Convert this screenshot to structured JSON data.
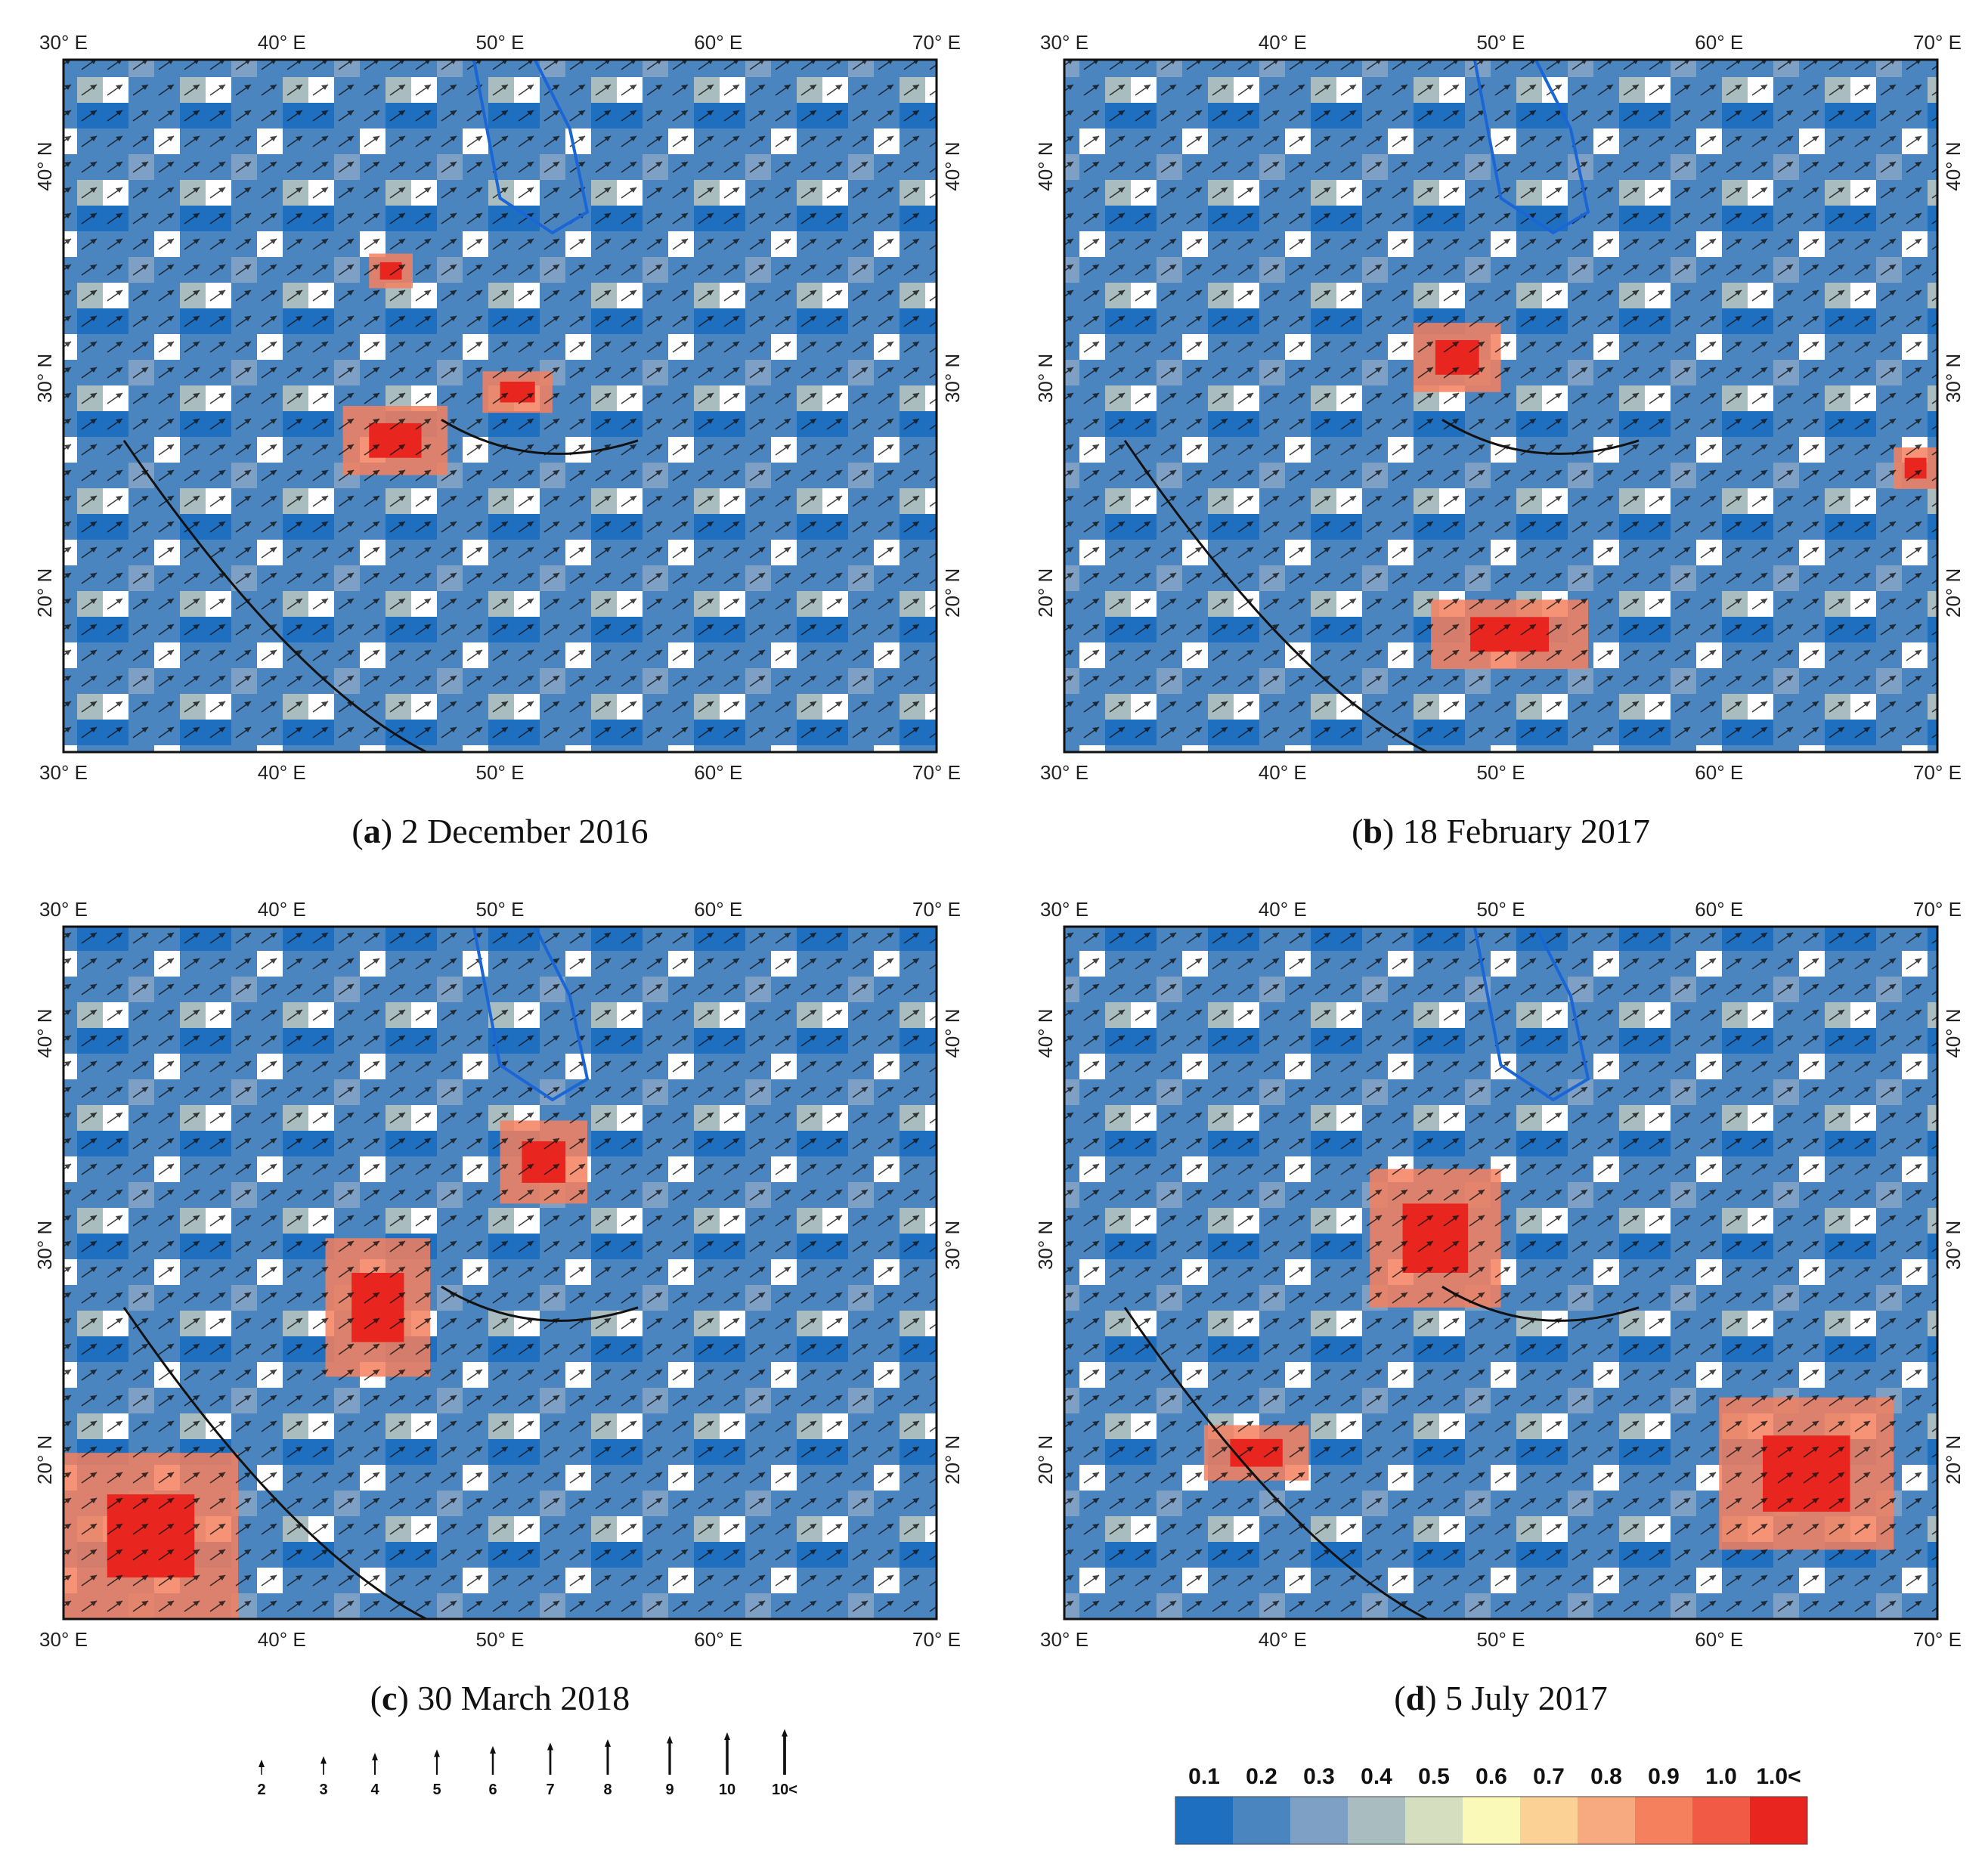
{
  "panels": [
    {
      "caption_parts": [
        "(",
        "a",
        ") 2 December 2016"
      ]
    },
    {
      "caption_parts": [
        "(",
        "b",
        ") 18 February 2017"
      ]
    },
    {
      "caption_parts": [
        "(",
        "c",
        ") 30 March 2018"
      ]
    },
    {
      "caption_parts": [
        "(",
        "d",
        ") 5 July 2017"
      ]
    }
  ],
  "lon_ticks": [
    "30° E",
    "40° E",
    "50° E",
    "60° E",
    "70° E"
  ],
  "lat_ticks": [
    "40° N",
    "30° N",
    "20° N"
  ],
  "wind_legend": {
    "labels": [
      "2",
      "3",
      "4",
      "5",
      "6",
      "7",
      "8",
      "9",
      "10",
      "10<"
    ]
  },
  "color_legend": {
    "labels": [
      "0.1",
      "0.2",
      "0.3",
      "0.4",
      "0.5",
      "0.6",
      "0.7",
      "0.8",
      "0.9",
      "1.0",
      "1.0<"
    ],
    "colors": [
      "#1f6fc0",
      "#4a85c0",
      "#7da0c4",
      "#a9bdc0",
      "#d5dfc0",
      "#fbf9b8",
      "#fbd196",
      "#f7a980",
      "#f4805e",
      "#f15a45",
      "#e8261f"
    ]
  }
}
